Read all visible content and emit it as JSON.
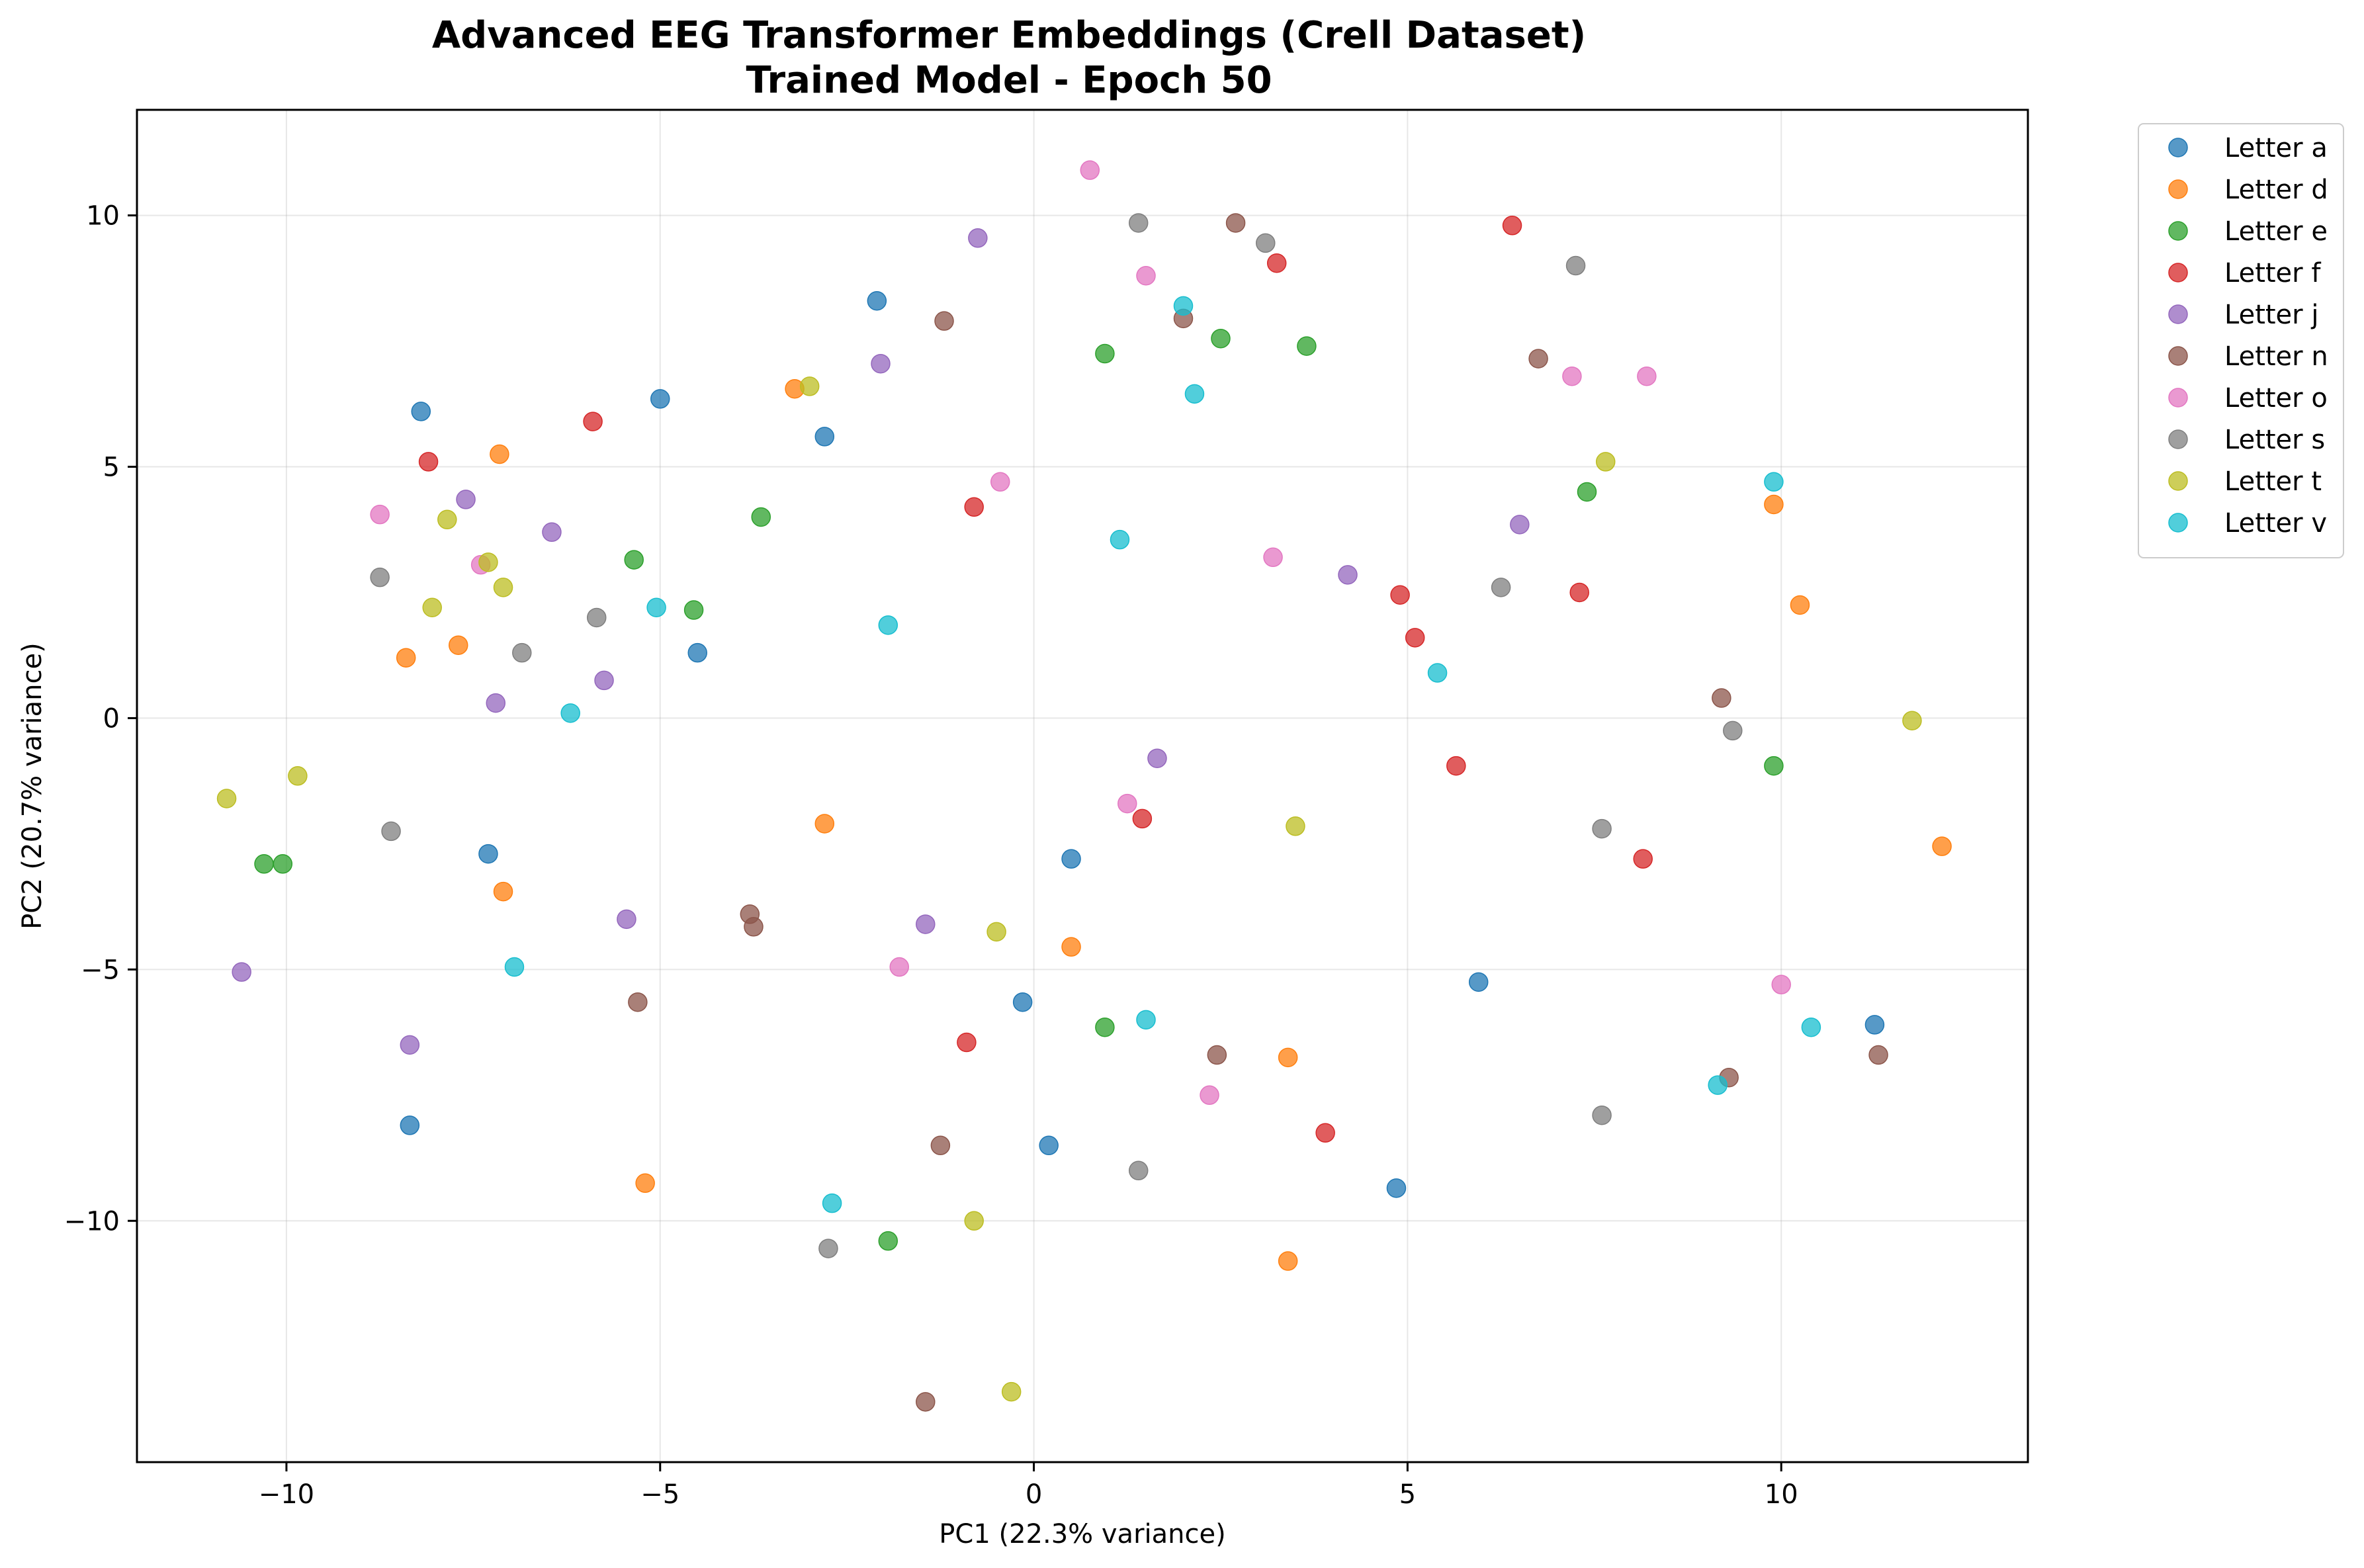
{
  "chart_data": {
    "type": "scatter",
    "title": "Advanced EEG Transformer Embeddings (Crell Dataset)",
    "subtitle": "Trained Model - Epoch 50",
    "xlabel": "PC1 (22.3% variance)",
    "ylabel": "PC2 (20.7% variance)",
    "xlim": [
      -12.0,
      13.3
    ],
    "ylim": [
      -14.8,
      12.1
    ],
    "xticks": [
      -10,
      -5,
      0,
      5,
      10
    ],
    "yticks": [
      -10,
      -5,
      0,
      5,
      10
    ],
    "grid": true,
    "legend_position": "outside-top-right",
    "series": [
      {
        "name": "Letter a",
        "color": "#1f77b4",
        "points": [
          [
            -8.2,
            6.1
          ],
          [
            -5.0,
            6.35
          ],
          [
            -2.1,
            8.3
          ],
          [
            -2.8,
            5.6
          ],
          [
            -4.5,
            1.3
          ],
          [
            -7.3,
            -2.7
          ],
          [
            0.5,
            -2.8
          ],
          [
            -0.15,
            -5.65
          ],
          [
            5.95,
            -5.25
          ],
          [
            11.25,
            -6.1
          ],
          [
            -8.35,
            -8.1
          ],
          [
            0.2,
            -8.5
          ],
          [
            4.85,
            -9.35
          ]
        ]
      },
      {
        "name": "Letter d",
        "color": "#ff7f0e",
        "points": [
          [
            -7.15,
            5.25
          ],
          [
            -3.2,
            6.55
          ],
          [
            -8.4,
            1.2
          ],
          [
            -7.7,
            1.45
          ],
          [
            -2.8,
            -2.1
          ],
          [
            -7.1,
            -3.45
          ],
          [
            0.5,
            -4.55
          ],
          [
            3.4,
            -6.75
          ],
          [
            -5.2,
            -9.25
          ],
          [
            3.4,
            -10.8
          ],
          [
            9.9,
            4.25
          ],
          [
            10.25,
            2.25
          ],
          [
            12.15,
            -2.55
          ]
        ]
      },
      {
        "name": "Letter e",
        "color": "#2ca02c",
        "points": [
          [
            0.95,
            7.25
          ],
          [
            2.5,
            7.55
          ],
          [
            3.65,
            7.4
          ],
          [
            -3.65,
            4.0
          ],
          [
            -5.35,
            3.15
          ],
          [
            -4.55,
            2.15
          ],
          [
            7.4,
            4.5
          ],
          [
            9.9,
            -0.95
          ],
          [
            -10.3,
            -2.9
          ],
          [
            -10.05,
            -2.9
          ],
          [
            0.95,
            -6.15
          ],
          [
            -1.95,
            -10.4
          ]
        ]
      },
      {
        "name": "Letter f",
        "color": "#d62728",
        "points": [
          [
            6.4,
            9.8
          ],
          [
            3.25,
            9.05
          ],
          [
            -5.9,
            5.9
          ],
          [
            -8.1,
            5.1
          ],
          [
            -0.8,
            4.2
          ],
          [
            4.9,
            2.45
          ],
          [
            5.1,
            1.6
          ],
          [
            7.3,
            2.5
          ],
          [
            5.65,
            -0.95
          ],
          [
            1.45,
            -2.0
          ],
          [
            8.15,
            -2.8
          ],
          [
            -0.9,
            -6.45
          ],
          [
            3.9,
            -8.25
          ]
        ]
      },
      {
        "name": "Letter j",
        "color": "#9467bd",
        "points": [
          [
            -0.75,
            9.55
          ],
          [
            -2.05,
            7.05
          ],
          [
            -7.6,
            4.35
          ],
          [
            -6.45,
            3.7
          ],
          [
            6.5,
            3.85
          ],
          [
            4.2,
            2.85
          ],
          [
            -7.2,
            0.3
          ],
          [
            -5.75,
            0.75
          ],
          [
            1.65,
            -0.8
          ],
          [
            -5.45,
            -4.0
          ],
          [
            -1.45,
            -4.1
          ],
          [
            -10.6,
            -5.05
          ],
          [
            -8.35,
            -6.5
          ]
        ]
      },
      {
        "name": "Letter n",
        "color": "#8c564b",
        "points": [
          [
            2.7,
            9.85
          ],
          [
            -1.2,
            7.9
          ],
          [
            2.0,
            7.95
          ],
          [
            6.75,
            7.15
          ],
          [
            9.2,
            0.4
          ],
          [
            -3.8,
            -3.9
          ],
          [
            -3.75,
            -4.15
          ],
          [
            -5.3,
            -5.65
          ],
          [
            2.45,
            -6.7
          ],
          [
            9.3,
            -7.15
          ],
          [
            11.3,
            -6.7
          ],
          [
            -1.25,
            -8.5
          ],
          [
            -1.45,
            -13.6
          ]
        ]
      },
      {
        "name": "Letter o",
        "color": "#e377c2",
        "points": [
          [
            0.75,
            10.9
          ],
          [
            1.5,
            8.8
          ],
          [
            7.2,
            6.8
          ],
          [
            8.2,
            6.8
          ],
          [
            -0.45,
            4.7
          ],
          [
            -8.75,
            4.05
          ],
          [
            -7.4,
            3.05
          ],
          [
            3.2,
            3.2
          ],
          [
            1.25,
            -1.7
          ],
          [
            -1.8,
            -4.95
          ],
          [
            10.0,
            -5.3
          ],
          [
            2.35,
            -7.5
          ]
        ]
      },
      {
        "name": "Letter s",
        "color": "#7f7f7f",
        "points": [
          [
            1.4,
            9.85
          ],
          [
            3.1,
            9.45
          ],
          [
            7.25,
            9.0
          ],
          [
            -8.75,
            2.8
          ],
          [
            -5.85,
            2.0
          ],
          [
            -6.85,
            1.3
          ],
          [
            6.25,
            2.6
          ],
          [
            9.35,
            -0.25
          ],
          [
            7.6,
            -2.2
          ],
          [
            -8.6,
            -2.25
          ],
          [
            7.6,
            -7.9
          ],
          [
            1.4,
            -9.0
          ],
          [
            -2.75,
            -10.55
          ]
        ]
      },
      {
        "name": "Letter t",
        "color": "#bcbd22",
        "points": [
          [
            -3.0,
            6.6
          ],
          [
            -7.85,
            3.95
          ],
          [
            -7.3,
            3.1
          ],
          [
            -7.1,
            2.6
          ],
          [
            -8.05,
            2.2
          ],
          [
            7.65,
            5.1
          ],
          [
            11.75,
            -0.05
          ],
          [
            -10.8,
            -1.6
          ],
          [
            -9.85,
            -1.15
          ],
          [
            3.5,
            -2.15
          ],
          [
            -0.5,
            -4.25
          ],
          [
            -0.8,
            -10.0
          ],
          [
            -0.3,
            -13.4
          ]
        ]
      },
      {
        "name": "Letter v",
        "color": "#17becf",
        "points": [
          [
            2.0,
            8.2
          ],
          [
            2.15,
            6.45
          ],
          [
            1.15,
            3.55
          ],
          [
            -5.05,
            2.2
          ],
          [
            -1.95,
            1.85
          ],
          [
            -6.2,
            0.1
          ],
          [
            5.4,
            0.9
          ],
          [
            9.9,
            4.7
          ],
          [
            -6.95,
            -4.95
          ],
          [
            1.5,
            -6.0
          ],
          [
            10.4,
            -6.15
          ],
          [
            9.15,
            -7.3
          ],
          [
            -2.7,
            -9.65
          ]
        ]
      }
    ]
  }
}
